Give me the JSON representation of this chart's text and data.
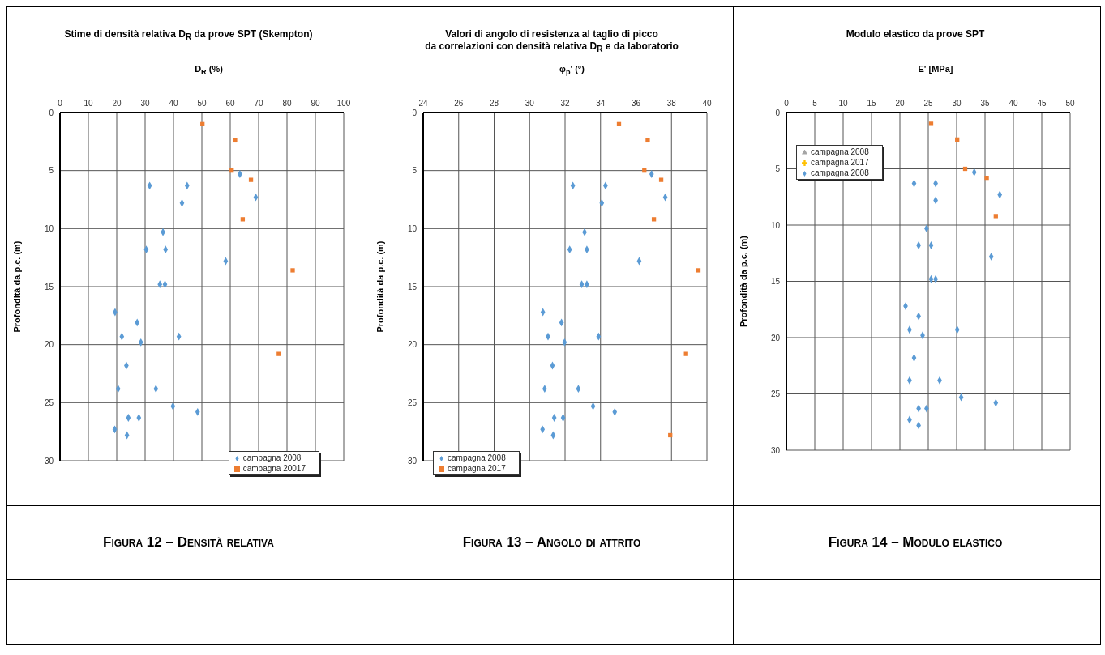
{
  "chart_data": [
    {
      "type": "scatter",
      "title": "Stime di densità relativa D$_{R}$ da prove SPT (Skempton)",
      "xlabel": "D$_{R}$ (%)",
      "ylabel": "Profondità da p.c. (m)",
      "xlim": [
        0,
        100
      ],
      "xticks": [
        0,
        10,
        20,
        30,
        40,
        50,
        60,
        70,
        80,
        90,
        100
      ],
      "ylim": [
        30,
        0
      ],
      "yticks": [
        0,
        5,
        10,
        15,
        20,
        25,
        30
      ],
      "grid": true,
      "legend": "bottom right",
      "annotations": [
        "Figura 12 – Densità relativa"
      ],
      "series": [
        {
          "name": "campagna 2008",
          "color": "#5b9bd5",
          "marker": "diamond",
          "x": [
            63.4,
            31.6,
            44.8,
            69.0,
            43.0,
            36.3,
            30.4,
            37.2,
            58.4,
            35.2,
            37.0,
            19.4,
            27.2,
            21.8,
            41.9,
            28.5,
            23.4,
            20.5,
            33.8,
            39.8,
            48.5,
            24.1,
            27.8,
            19.3,
            23.6
          ],
          "values": [
            5.3,
            6.3,
            6.3,
            7.3,
            7.8,
            10.3,
            11.8,
            11.8,
            12.8,
            14.8,
            14.8,
            17.2,
            18.1,
            19.3,
            19.3,
            19.8,
            21.8,
            23.8,
            23.8,
            25.3,
            25.8,
            26.3,
            26.3,
            27.3,
            27.8
          ]
        },
        {
          "name": "campagna 20017",
          "color": "#ed7d31",
          "marker": "square",
          "x": [
            50.2,
            61.7,
            60.5,
            67.3,
            64.4,
            82.0,
            77.1
          ],
          "values": [
            1.0,
            2.4,
            5.0,
            5.8,
            9.2,
            13.6,
            20.8
          ]
        }
      ]
    },
    {
      "type": "scatter",
      "title": "Valori di angolo di resistenza al taglio di picco\nda correlazioni con densità relativa D$_{R}$ e da laboratorio",
      "xlabel": "φ$_{p}$' (°)",
      "ylabel": "Profondità da p.c. (m)",
      "xlim": [
        24,
        40
      ],
      "xticks": [
        24,
        26,
        28,
        30,
        32,
        34,
        36,
        38,
        40
      ],
      "ylim": [
        30,
        0
      ],
      "yticks": [
        0,
        5,
        10,
        15,
        20,
        25,
        30
      ],
      "grid": true,
      "legend": "bottom left",
      "annotations": [
        "Figura 13 – Angolo di attrito"
      ],
      "series": [
        {
          "name": "campagna 2008",
          "color": "#5b9bd5",
          "marker": "diamond",
          "x": [
            36.88,
            32.44,
            34.28,
            37.65,
            34.07,
            33.1,
            32.26,
            33.23,
            36.18,
            32.94,
            33.23,
            30.75,
            31.8,
            31.04,
            33.89,
            31.97,
            31.29,
            30.85,
            32.75,
            33.58,
            34.8,
            31.39,
            31.89,
            30.73,
            31.33
          ],
          "values": [
            5.3,
            6.3,
            6.3,
            7.3,
            7.8,
            10.3,
            11.8,
            11.8,
            12.8,
            14.8,
            14.8,
            17.2,
            18.1,
            19.3,
            19.3,
            19.8,
            21.8,
            23.8,
            23.8,
            25.3,
            25.8,
            26.3,
            26.3,
            27.3,
            27.8
          ]
        },
        {
          "name": "campagna 2017",
          "color": "#ed7d31",
          "marker": "square",
          "x": [
            35.04,
            36.66,
            36.47,
            37.42,
            37.01,
            39.52,
            38.82,
            37.93
          ],
          "values": [
            1.0,
            2.4,
            5.0,
            5.8,
            9.2,
            13.6,
            20.8,
            27.8
          ]
        }
      ]
    },
    {
      "type": "scatter",
      "title": "Modulo elastico da prove SPT",
      "xlabel": "E' [MPa]",
      "ylabel": "Profondità da p.c. (m)",
      "xlim": [
        0,
        50
      ],
      "xticks": [
        0,
        5,
        10,
        15,
        20,
        25,
        30,
        35,
        40,
        45,
        50
      ],
      "ylim": [
        30,
        0
      ],
      "yticks": [
        0,
        5,
        10,
        15,
        20,
        25,
        30
      ],
      "grid": true,
      "legend": "top left",
      "annotations": [
        "Figura 14 – Modulo elastico"
      ],
      "series": [
        {
          "name": "campagna 2008",
          "color": "#a5a5a5",
          "marker": "triangle"
        },
        {
          "name": "campagna 2017",
          "color": "#ffc000",
          "marker": "cross"
        },
        {
          "name": "campagna 2008",
          "color": "#5b9bd5",
          "marker": "diamond",
          "x": [
            33.1,
            22.5,
            26.3,
            37.6,
            26.3,
            24.7,
            23.3,
            25.5,
            36.1,
            25.5,
            26.3,
            21.0,
            23.3,
            21.7,
            30.1,
            24.0,
            22.5,
            21.7,
            27.0,
            30.8,
            36.9,
            23.3,
            24.7,
            21.7,
            23.3
          ],
          "values": [
            5.3,
            6.3,
            6.3,
            7.3,
            7.8,
            10.3,
            11.8,
            11.8,
            12.8,
            14.8,
            14.8,
            17.2,
            18.1,
            19.3,
            19.3,
            19.8,
            21.8,
            23.8,
            23.8,
            25.3,
            25.8,
            26.3,
            26.3,
            27.3,
            27.8
          ]
        },
        {
          "color": "#ed7d31",
          "marker": "square",
          "x": [
            25.5,
            30.1,
            31.5,
            35.3,
            36.9
          ],
          "values": [
            1.0,
            2.4,
            5.0,
            5.8,
            9.2
          ]
        }
      ]
    }
  ]
}
